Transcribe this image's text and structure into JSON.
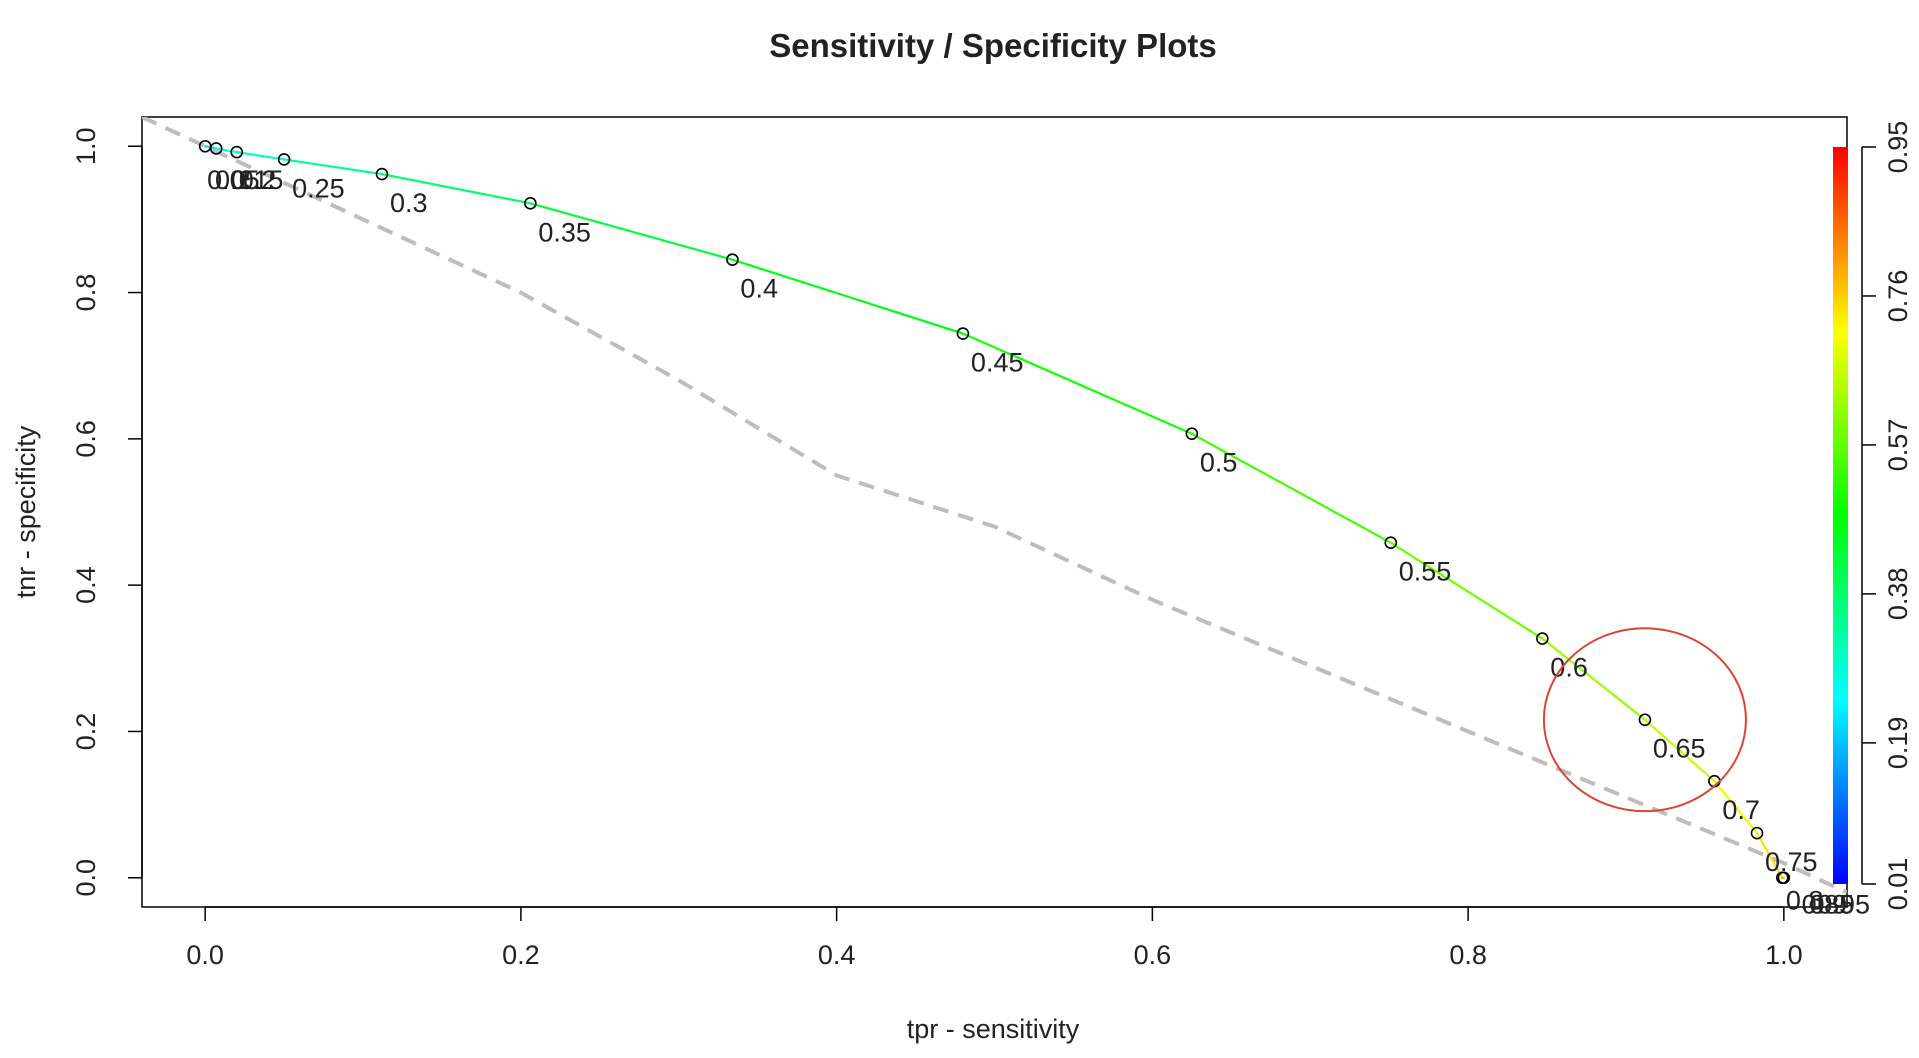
{
  "chart_data": {
    "type": "line",
    "title": "Sensitivity / Specificity Plots",
    "xlabel": "tpr - sensitivity",
    "ylabel": "tnr - specificity",
    "xlim": [
      -0.04,
      1.04
    ],
    "ylim": [
      -0.04,
      1.04
    ],
    "x_ticks": [
      "0.0",
      "0.2",
      "0.4",
      "0.6",
      "0.8",
      "1.0"
    ],
    "y_ticks": [
      "0.0",
      "0.2",
      "0.4",
      "0.6",
      "0.8",
      "1.0"
    ],
    "colorbar": {
      "title": "",
      "ticks": [
        "0.01",
        "0.19",
        "0.38",
        "0.57",
        "0.76",
        "0.95"
      ],
      "range": [
        0.01,
        0.95
      ],
      "colors": [
        "#0000ff",
        "#00ffff",
        "#00ff00",
        "#ffff00",
        "#ff0000"
      ]
    },
    "series": [
      {
        "role": "threshold-curve",
        "x": [
          0.0,
          0.007,
          0.02,
          0.05,
          0.112,
          0.206,
          0.334,
          0.48,
          0.625,
          0.751,
          0.847,
          0.912,
          0.956,
          0.983,
          0.999,
          1.0
        ],
        "y": [
          1.0,
          0.997,
          0.992,
          0.982,
          0.962,
          0.922,
          0.845,
          0.744,
          0.607,
          0.458,
          0.327,
          0.216,
          0.132,
          0.061,
          0.0,
          0.0
        ]
      },
      {
        "role": "reference-dashed",
        "x": [
          -0.04,
          0.1,
          0.2,
          0.3,
          0.4,
          0.5,
          0.6,
          0.7,
          0.8,
          0.9,
          1.0,
          1.04
        ],
        "y": [
          1.04,
          0.9,
          0.8,
          0.68,
          0.55,
          0.48,
          0.38,
          0.29,
          0.2,
          0.11,
          0.02,
          -0.02
        ],
        "color": "#bdbdbd"
      }
    ],
    "points": [
      {
        "x": 0.0,
        "y": 1.0,
        "label": ""
      },
      {
        "x": 0.007,
        "y": 0.997,
        "label": ""
      },
      {
        "x": 0.02,
        "y": 0.992,
        "label": ""
      },
      {
        "x": 0.05,
        "y": 0.982,
        "label": "0.25"
      },
      {
        "x": 0.112,
        "y": 0.962,
        "label": "0.3"
      },
      {
        "x": 0.206,
        "y": 0.922,
        "label": "0.35"
      },
      {
        "x": 0.334,
        "y": 0.845,
        "label": "0.4"
      },
      {
        "x": 0.48,
        "y": 0.744,
        "label": "0.45"
      },
      {
        "x": 0.625,
        "y": 0.607,
        "label": "0.5"
      },
      {
        "x": 0.751,
        "y": 0.458,
        "label": "0.55"
      },
      {
        "x": 0.847,
        "y": 0.327,
        "label": "0.6"
      },
      {
        "x": 0.912,
        "y": 0.216,
        "label": "0.65"
      },
      {
        "x": 0.956,
        "y": 0.132,
        "label": "0.7"
      },
      {
        "x": 0.983,
        "y": 0.061,
        "label": "0.75"
      },
      {
        "x": 0.999,
        "y": 0.0,
        "label": ""
      },
      {
        "x": 1.0,
        "y": 0.0,
        "label": ""
      }
    ],
    "overlapping_labels": [
      {
        "x": 0.0,
        "y": 0.955,
        "text": "0.05"
      },
      {
        "x": 0.005,
        "y": 0.955,
        "text": "0.1"
      },
      {
        "x": 0.015,
        "y": 0.955,
        "text": "0.15"
      },
      {
        "x": 0.02,
        "y": 0.955,
        "text": "0.2"
      },
      {
        "x": 1.0,
        "y": -0.03,
        "text": "0.8"
      },
      {
        "x": 1.01,
        "y": -0.035,
        "text": "0.85"
      },
      {
        "x": 1.015,
        "y": -0.035,
        "text": "0.9"
      },
      {
        "x": 1.02,
        "y": -0.035,
        "text": "0.95"
      }
    ],
    "annotation": {
      "type": "ellipse",
      "cx": 0.912,
      "cy": 0.216,
      "rx": 0.064,
      "ry": 0.125,
      "color": "#d94535"
    },
    "grid": false,
    "legend": "colorbar-right"
  }
}
